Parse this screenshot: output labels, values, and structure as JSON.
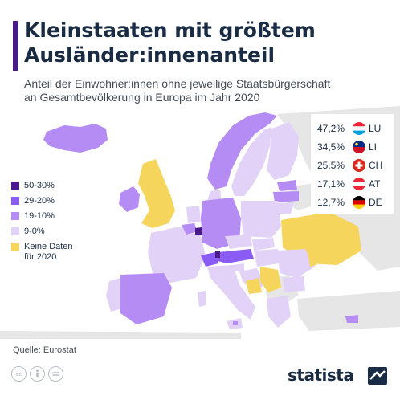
{
  "header": {
    "title_line1": "Kleinstaaten mit größtem",
    "title_line2": "Ausländer:innenanteil",
    "subtitle_line1": "Anteil der Einwohner:innen ohne jeweilige Staatsbürgerschaft",
    "subtitle_line2": "an Gesamtbevölkerung in Europa im Jahr 2020"
  },
  "colors": {
    "accent": "#4a1a8a",
    "class_50_30": "#4a1a8a",
    "class_29_20": "#8a5cf5",
    "class_19_10": "#b58cf4",
    "class_9_0": "#e2d2f7",
    "no_data": "#f6d55c",
    "non_eu": "#e6e6e6"
  },
  "legend": {
    "items": [
      {
        "label": "50-30%",
        "color": "#4a1a8a"
      },
      {
        "label": "29-20%",
        "color": "#8a5cf5"
      },
      {
        "label": "19-10%",
        "color": "#b58cf4"
      },
      {
        "label": "9-0%",
        "color": "#e2d2f7"
      },
      {
        "label_line1": "Keine Daten",
        "label_line2": "für 2020",
        "color": "#f6d55c"
      }
    ]
  },
  "ranking": [
    {
      "value": "47,2%",
      "code": "LU",
      "flag": "luxembourg-flag"
    },
    {
      "value": "34,5%",
      "code": "LI",
      "flag": "liechtenstein-flag"
    },
    {
      "value": "25,5%",
      "code": "CH",
      "flag": "switzerland-flag"
    },
    {
      "value": "17,1%",
      "code": "AT",
      "flag": "austria-flag"
    },
    {
      "value": "12,7%",
      "code": "DE",
      "flag": "germany-flag"
    }
  ],
  "footer": {
    "source": "Quelle: Eurostat",
    "brand": "statista",
    "license_icons": [
      "cc-icon",
      "by-icon",
      "nd-icon"
    ]
  }
}
